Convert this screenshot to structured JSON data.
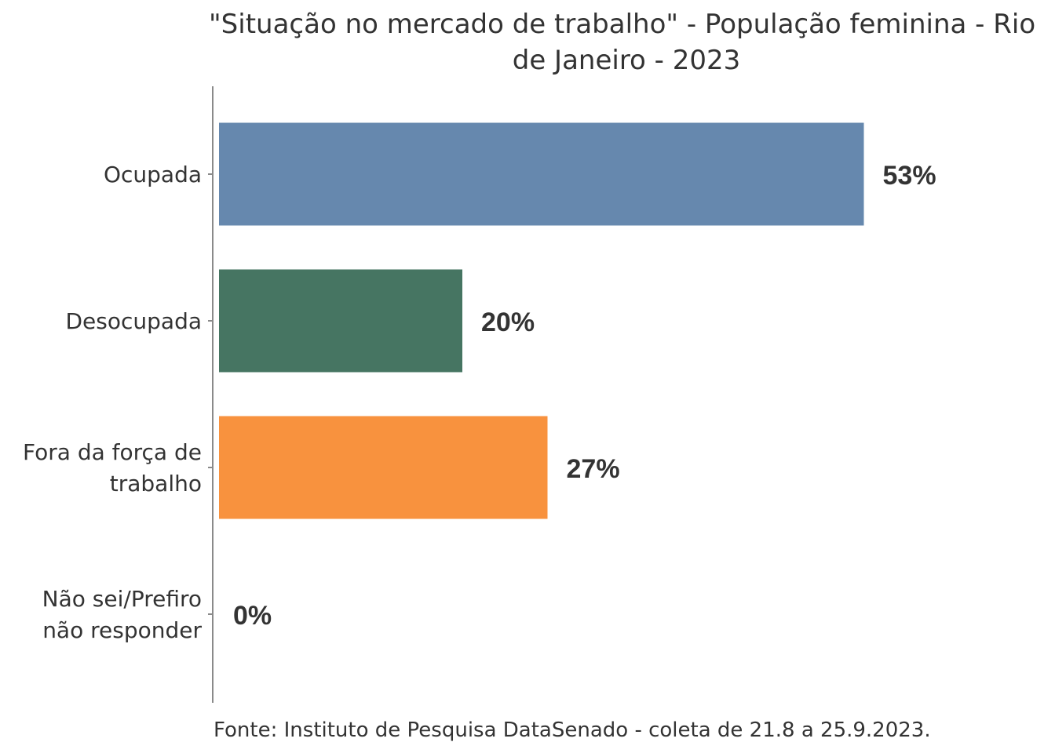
{
  "chart_data": {
    "type": "bar",
    "orientation": "horizontal",
    "title": "\"Situação no mercado de trabalho\" - População feminina - Rio de Janeiro - 2023",
    "title_lines": [
      "\"Situação no mercado de trabalho\" - População feminina - Rio",
      "de Janeiro - 2023"
    ],
    "categories": [
      "Ocupada",
      "Desocupada",
      "Fora da força de trabalho",
      "Não sei/Prefiro não responder"
    ],
    "category_lines": [
      [
        "Ocupada"
      ],
      [
        "Desocupada"
      ],
      [
        "Fora da força de",
        "trabalho"
      ],
      [
        "Não sei/Prefiro",
        "não responder"
      ]
    ],
    "values": [
      53,
      20,
      27,
      0
    ],
    "value_labels": [
      "53%",
      "20%",
      "27%",
      "0%"
    ],
    "colors": [
      "#6688ae",
      "#467562",
      "#f8923e",
      "#cccccc"
    ],
    "xlim": [
      0,
      60
    ],
    "grid": false,
    "legend": "none",
    "source": "Fonte: Instituto de Pesquisa DataSenado - coleta de 21.8 a 25.9.2023."
  }
}
